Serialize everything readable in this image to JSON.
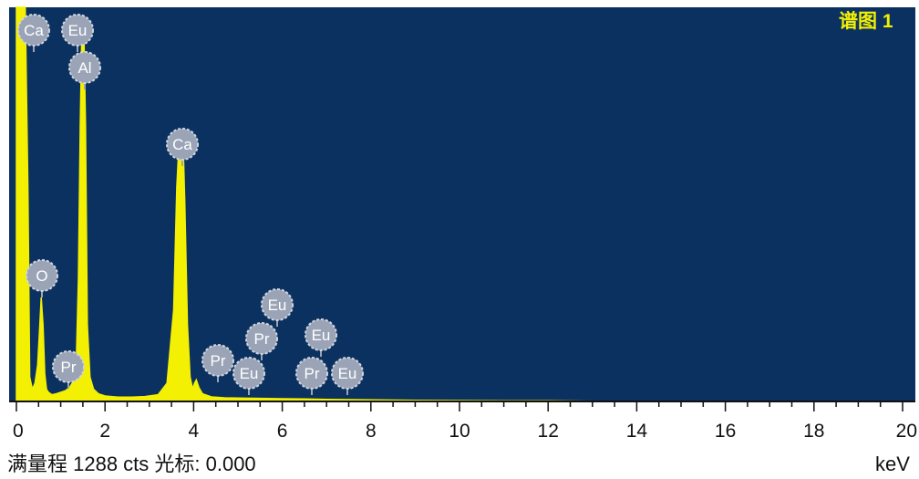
{
  "chart_data": {
    "type": "line",
    "title": "谱图 1",
    "xlabel": "keV",
    "ylabel": "",
    "xlim": [
      0,
      20
    ],
    "ylim": [
      0,
      1288
    ],
    "grid": false,
    "x_ticks": [
      0,
      2,
      4,
      6,
      8,
      10,
      12,
      14,
      16,
      18,
      20
    ],
    "tick_labels": [
      "0",
      "2",
      "4",
      "6",
      "8",
      "10",
      "12",
      "14",
      "16",
      "18",
      "20"
    ],
    "series": [
      {
        "x": [
          0.0,
          0.08,
          0.12,
          0.16,
          0.2,
          0.26,
          0.3,
          0.36,
          0.42,
          0.48,
          0.52,
          0.56,
          0.6,
          0.64,
          0.68,
          0.72,
          0.8,
          0.9,
          1.0,
          1.1,
          1.2,
          1.3,
          1.35,
          1.4,
          1.44,
          1.48,
          1.52,
          1.56,
          1.6,
          1.66,
          1.74,
          1.85,
          2.0,
          2.3,
          2.6,
          2.9,
          3.2,
          3.4,
          3.55,
          3.62,
          3.68,
          3.72,
          3.76,
          3.8,
          3.86,
          3.92,
          3.98,
          4.02,
          4.06,
          4.12,
          4.2,
          4.4,
          4.7,
          5.0,
          5.5,
          6.0,
          6.5,
          7.0,
          7.5,
          8.0,
          9.0,
          10.0,
          11.0,
          12.0,
          13.0,
          14.0,
          16.0,
          18.0,
          20.0
        ],
        "y": [
          1288,
          1288,
          1288,
          1288,
          1288,
          700,
          80,
          40,
          60,
          120,
          230,
          340,
          250,
          90,
          40,
          30,
          22,
          25,
          30,
          35,
          45,
          70,
          120,
          400,
          900,
          1230,
          1230,
          900,
          250,
          80,
          40,
          25,
          18,
          14,
          14,
          16,
          22,
          60,
          300,
          700,
          870,
          880,
          860,
          650,
          250,
          80,
          40,
          60,
          70,
          45,
          25,
          15,
          12,
          11,
          10,
          9,
          8,
          7,
          6,
          5,
          4,
          3,
          2,
          2,
          1,
          1,
          0,
          0,
          0
        ]
      }
    ],
    "annotations": [
      "Ca",
      "Eu",
      "Al",
      "Ca",
      "O",
      "Pr",
      "Eu",
      "Pr",
      "Pr",
      "Eu",
      "Eu",
      "Pr",
      "Eu"
    ]
  },
  "status": {
    "full_scale": "满量程 1288 cts 光标: 0.000",
    "unit": "keV"
  },
  "colors": {
    "plot_background": "#0b3160",
    "spectrum": "#f3f003",
    "title": "#f3f003",
    "badge_fill": "#9aa4b6",
    "badge_text": "#ffffff"
  }
}
